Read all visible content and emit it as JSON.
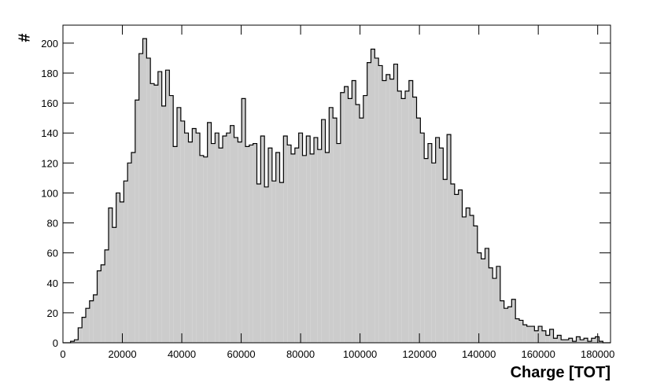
{
  "chart_data": {
    "type": "histogram",
    "xlabel": "Charge [TOT]",
    "ylabel": "#",
    "color": "#cccccc",
    "edgecolor": "#000000",
    "bins": [
      0,
      1280,
      2560,
      3840,
      5120,
      6400,
      7680,
      8960,
      10240,
      11520,
      12800,
      14080,
      15360,
      16640,
      17920,
      19200,
      20480,
      21760,
      23040,
      24320,
      25600,
      26880,
      28160,
      29440,
      30720,
      32000,
      33280,
      34560,
      35840,
      37120,
      38400,
      39680,
      40960,
      42240,
      43520,
      44800,
      46080,
      47360,
      48640,
      49920,
      51200,
      52480,
      53760,
      55040,
      56320,
      57600,
      58880,
      60160,
      61440,
      62720,
      64000,
      65280,
      66560,
      67840,
      69120,
      70400,
      71680,
      72960,
      74240,
      75520,
      76800,
      78080,
      79360,
      80640,
      81920,
      83200,
      84480,
      85760,
      87040,
      88320,
      89600,
      90880,
      92160,
      93440,
      94720,
      96000,
      97280,
      98560,
      99840,
      101120,
      102400,
      103680,
      104960,
      106240,
      107520,
      108800,
      110080,
      111360,
      112640,
      113920,
      115200,
      116480,
      117760,
      119040,
      120320,
      121600,
      122880,
      124160,
      125440,
      126720,
      128000,
      129280,
      130560,
      131840,
      133120,
      134400,
      135680,
      136960,
      138240,
      139520,
      140800,
      142080,
      143360,
      144640,
      145920,
      147200,
      148480,
      149760,
      151040,
      152320,
      153600,
      154880,
      156160,
      157440,
      158720,
      160000,
      161280,
      162560,
      163840,
      165120,
      166400,
      167680,
      168960,
      170240,
      171520,
      172800,
      174080,
      175360,
      176640,
      177920,
      179200,
      180480,
      181760,
      183040,
      184320
    ],
    "values": [
      0,
      0,
      1,
      2,
      10,
      17,
      23,
      28,
      32,
      48,
      52,
      62,
      90,
      77,
      100,
      94,
      108,
      120,
      127,
      162,
      193,
      203,
      190,
      173,
      172,
      181,
      158,
      182,
      165,
      131,
      157,
      148,
      140,
      134,
      143,
      140,
      125,
      124,
      147,
      133,
      140,
      130,
      138,
      140,
      145,
      137,
      134,
      163,
      131,
      132,
      133,
      106,
      138,
      104,
      130,
      108,
      127,
      107,
      138,
      132,
      126,
      130,
      140,
      125,
      138,
      126,
      137,
      129,
      149,
      127,
      157,
      150,
      133,
      167,
      171,
      163,
      175,
      159,
      150,
      165,
      187,
      196,
      190,
      185,
      175,
      179,
      176,
      186,
      168,
      163,
      168,
      175,
      164,
      150,
      140,
      123,
      133,
      120,
      137,
      130,
      109,
      139,
      106,
      99,
      102,
      84,
      90,
      85,
      78,
      60,
      56,
      63,
      50,
      43,
      51,
      28,
      23,
      24,
      29,
      16,
      15,
      12,
      11,
      11,
      8,
      11,
      8,
      5,
      9,
      3,
      5,
      2,
      2,
      3,
      1,
      4,
      2,
      3,
      1,
      3,
      4,
      1,
      0,
      0
    ],
    "xlim": [
      0,
      184320
    ],
    "ylim": [
      0,
      212
    ],
    "xticks": [
      0,
      20000,
      40000,
      60000,
      80000,
      100000,
      120000,
      140000,
      160000,
      180000
    ],
    "yticks": [
      0,
      20,
      40,
      60,
      80,
      100,
      120,
      140,
      160,
      180,
      200
    ]
  }
}
